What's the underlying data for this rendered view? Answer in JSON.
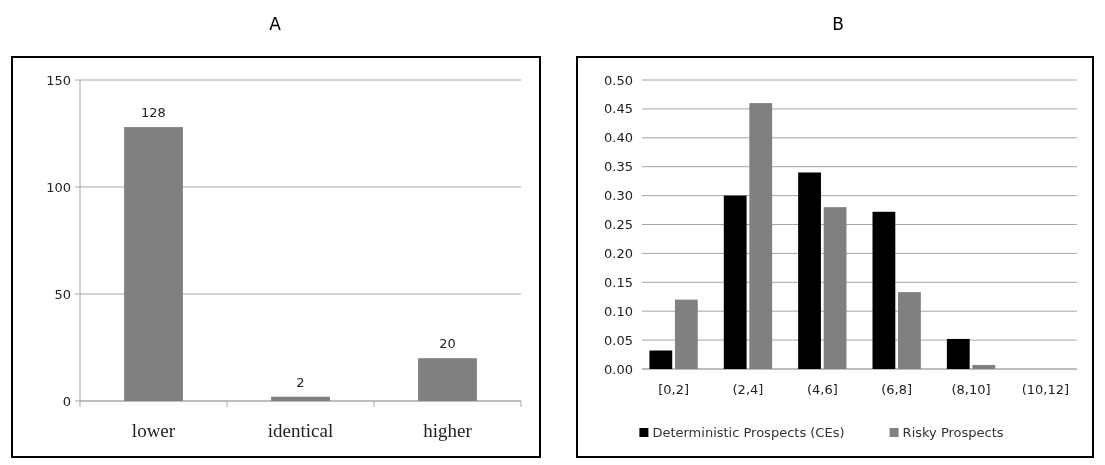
{
  "chart_data": [
    {
      "type": "bar",
      "title": "A",
      "categories": [
        "lower",
        "identical",
        "higher"
      ],
      "values": [
        128,
        2,
        20
      ],
      "color": "#808080",
      "ylim": [
        0,
        150
      ],
      "yticks": [
        0,
        50,
        100,
        150
      ],
      "grid": "y",
      "data_labels": true
    },
    {
      "type": "bar",
      "title": "B",
      "categories": [
        "[0,2]",
        "(2,4]",
        "(4,6]",
        "(6,8]",
        "(8,10]",
        "(10,12]"
      ],
      "series": [
        {
          "name": "Deterministic Prospects (CEs)",
          "color": "#000000",
          "values": [
            0.032,
            0.3,
            0.34,
            0.272,
            0.052,
            0
          ]
        },
        {
          "name": "Risky Prospects",
          "color": "#808080",
          "values": [
            0.12,
            0.46,
            0.28,
            0.133,
            0.007,
            0
          ]
        }
      ],
      "ylim": [
        0,
        0.5
      ],
      "yticks": [
        {
          "value": 0,
          "label": "0.00"
        },
        {
          "value": 0.05,
          "label": "0.05"
        },
        {
          "value": 0.1,
          "label": "0.10"
        },
        {
          "value": 0.15,
          "label": "0.15"
        },
        {
          "value": 0.2,
          "label": "0.20"
        },
        {
          "value": 0.25,
          "label": "0.25"
        },
        {
          "value": 0.3,
          "label": "0.30"
        },
        {
          "value": 0.35,
          "label": "0.35"
        },
        {
          "value": 0.4,
          "label": "0.40"
        },
        {
          "value": 0.45,
          "label": "0.45"
        },
        {
          "value": 0.5,
          "label": "0.50"
        }
      ],
      "grid": "y",
      "legend": "bottom"
    }
  ]
}
